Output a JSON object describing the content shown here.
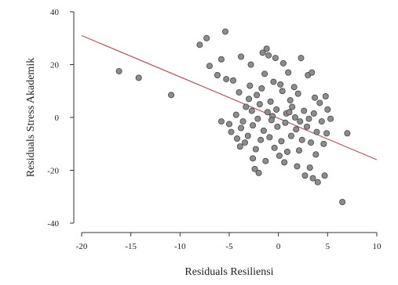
{
  "chart_data": {
    "type": "scatter",
    "title": "",
    "xlabel": "Residuals Resiliensi",
    "ylabel": "Residuals Stress Akademik",
    "xlim": [
      -20,
      10
    ],
    "ylim": [
      -40,
      40
    ],
    "xticks": [
      -20,
      -15,
      -10,
      -5,
      0,
      5,
      10
    ],
    "yticks": [
      -40,
      -20,
      0,
      20,
      40
    ],
    "xtick_labels": [
      "-20",
      "-15",
      "-10",
      "-5",
      "0",
      "5",
      "10"
    ],
    "ytick_labels": [
      "-40",
      "-20",
      "0",
      "20",
      "40"
    ],
    "grid": false,
    "regression_line": {
      "x": [
        -20,
        10
      ],
      "y": [
        31,
        -16
      ]
    },
    "colors": {
      "point_fill": "#8c8c8c",
      "point_stroke": "#444444",
      "line": "#b5545c",
      "axis": "#333333"
    },
    "points": [
      {
        "x": -16.2,
        "y": 17.5
      },
      {
        "x": -14.2,
        "y": 15.0
      },
      {
        "x": -10.9,
        "y": 8.5
      },
      {
        "x": -8.0,
        "y": 27.5
      },
      {
        "x": -7.3,
        "y": 30.0
      },
      {
        "x": -5.4,
        "y": 32.5
      },
      {
        "x": -7.0,
        "y": 19.5
      },
      {
        "x": -6.2,
        "y": 16.0
      },
      {
        "x": -5.3,
        "y": 14.5
      },
      {
        "x": -4.6,
        "y": 14.0
      },
      {
        "x": -3.8,
        "y": 23.0
      },
      {
        "x": -2.8,
        "y": 20.0
      },
      {
        "x": -1.6,
        "y": 24.5
      },
      {
        "x": -1.0,
        "y": 23.5
      },
      {
        "x": -0.3,
        "y": 22.5
      },
      {
        "x": -5.8,
        "y": 22.0
      },
      {
        "x": -1.4,
        "y": 16.5
      },
      {
        "x": -0.5,
        "y": 13.5
      },
      {
        "x": 0.2,
        "y": 12.5
      },
      {
        "x": 1.0,
        "y": 17.0
      },
      {
        "x": 2.3,
        "y": 22.5
      },
      {
        "x": 3.0,
        "y": 16.0
      },
      {
        "x": 3.4,
        "y": 17.0
      },
      {
        "x": 0.4,
        "y": 10.0
      },
      {
        "x": 1.6,
        "y": 11.5
      },
      {
        "x": -2.2,
        "y": 8.5
      },
      {
        "x": -3.0,
        "y": 7.0
      },
      {
        "x": -4.0,
        "y": 9.5
      },
      {
        "x": -1.9,
        "y": 5.0
      },
      {
        "x": -3.3,
        "y": 4.0
      },
      {
        "x": -0.8,
        "y": 6.0
      },
      {
        "x": 2.0,
        "y": 9.0
      },
      {
        "x": 3.7,
        "y": 7.5
      },
      {
        "x": 4.2,
        "y": 5.5
      },
      {
        "x": 4.8,
        "y": 8.0
      },
      {
        "x": 5.0,
        "y": 3.0
      },
      {
        "x": 1.2,
        "y": 6.5
      },
      {
        "x": -2.7,
        "y": 2.5
      },
      {
        "x": -1.1,
        "y": 2.0
      },
      {
        "x": -0.2,
        "y": 3.0
      },
      {
        "x": 0.8,
        "y": 1.5
      },
      {
        "x": 2.6,
        "y": 2.5
      },
      {
        "x": 3.6,
        "y": 1.5
      },
      {
        "x": -4.3,
        "y": 1.0
      },
      {
        "x": -5.8,
        "y": -1.5
      },
      {
        "x": -5.0,
        "y": -2.5
      },
      {
        "x": -3.6,
        "y": -1.5
      },
      {
        "x": -2.1,
        "y": -0.5
      },
      {
        "x": -0.6,
        "y": 0.5
      },
      {
        "x": 1.7,
        "y": 0.0
      },
      {
        "x": 3.1,
        "y": -0.5
      },
      {
        "x": 4.4,
        "y": -1.5
      },
      {
        "x": 5.3,
        "y": -0.5
      },
      {
        "x": -4.8,
        "y": -5.5
      },
      {
        "x": -3.8,
        "y": -4.0
      },
      {
        "x": -2.6,
        "y": -3.0
      },
      {
        "x": -1.5,
        "y": -5.0
      },
      {
        "x": -0.1,
        "y": -3.5
      },
      {
        "x": 0.7,
        "y": -2.0
      },
      {
        "x": 1.8,
        "y": -4.5
      },
      {
        "x": 2.9,
        "y": -3.5
      },
      {
        "x": 3.9,
        "y": -5.5
      },
      {
        "x": 4.9,
        "y": -6.0
      },
      {
        "x": 7.0,
        "y": -6.0
      },
      {
        "x": -4.2,
        "y": -8.0
      },
      {
        "x": -3.1,
        "y": -7.0
      },
      {
        "x": -1.8,
        "y": -8.5
      },
      {
        "x": -0.9,
        "y": -7.5
      },
      {
        "x": 0.3,
        "y": -9.0
      },
      {
        "x": 1.3,
        "y": -7.0
      },
      {
        "x": 2.4,
        "y": -8.5
      },
      {
        "x": 3.3,
        "y": -9.5
      },
      {
        "x": 4.6,
        "y": -10.0
      },
      {
        "x": -3.9,
        "y": -11.0
      },
      {
        "x": -2.3,
        "y": -12.0
      },
      {
        "x": -0.4,
        "y": -11.5
      },
      {
        "x": 0.9,
        "y": -13.0
      },
      {
        "x": 2.1,
        "y": -12.5
      },
      {
        "x": 3.8,
        "y": -14.0
      },
      {
        "x": -2.6,
        "y": -15.5
      },
      {
        "x": -1.3,
        "y": -16.5
      },
      {
        "x": 0.6,
        "y": -17.0
      },
      {
        "x": 1.9,
        "y": -18.5
      },
      {
        "x": 3.2,
        "y": -19.0
      },
      {
        "x": -2.4,
        "y": -19.5
      },
      {
        "x": -2.0,
        "y": -21.0
      },
      {
        "x": 2.7,
        "y": -22.0
      },
      {
        "x": 3.5,
        "y": -23.0
      },
      {
        "x": 4.0,
        "y": -24.5
      },
      {
        "x": 4.7,
        "y": -22.0
      },
      {
        "x": 6.5,
        "y": -32.0
      },
      {
        "x": -1.2,
        "y": 26.0
      },
      {
        "x": 0.5,
        "y": 20.5
      },
      {
        "x": -2.9,
        "y": 12.0
      },
      {
        "x": 1.4,
        "y": 4.0
      },
      {
        "x": -0.7,
        "y": -1.0
      },
      {
        "x": 2.2,
        "y": -1.5
      },
      {
        "x": -3.4,
        "y": -9.5
      },
      {
        "x": 0.1,
        "y": -14.5
      },
      {
        "x": 1.1,
        "y": 2.0
      },
      {
        "x": -1.7,
        "y": 11.0
      }
    ]
  }
}
